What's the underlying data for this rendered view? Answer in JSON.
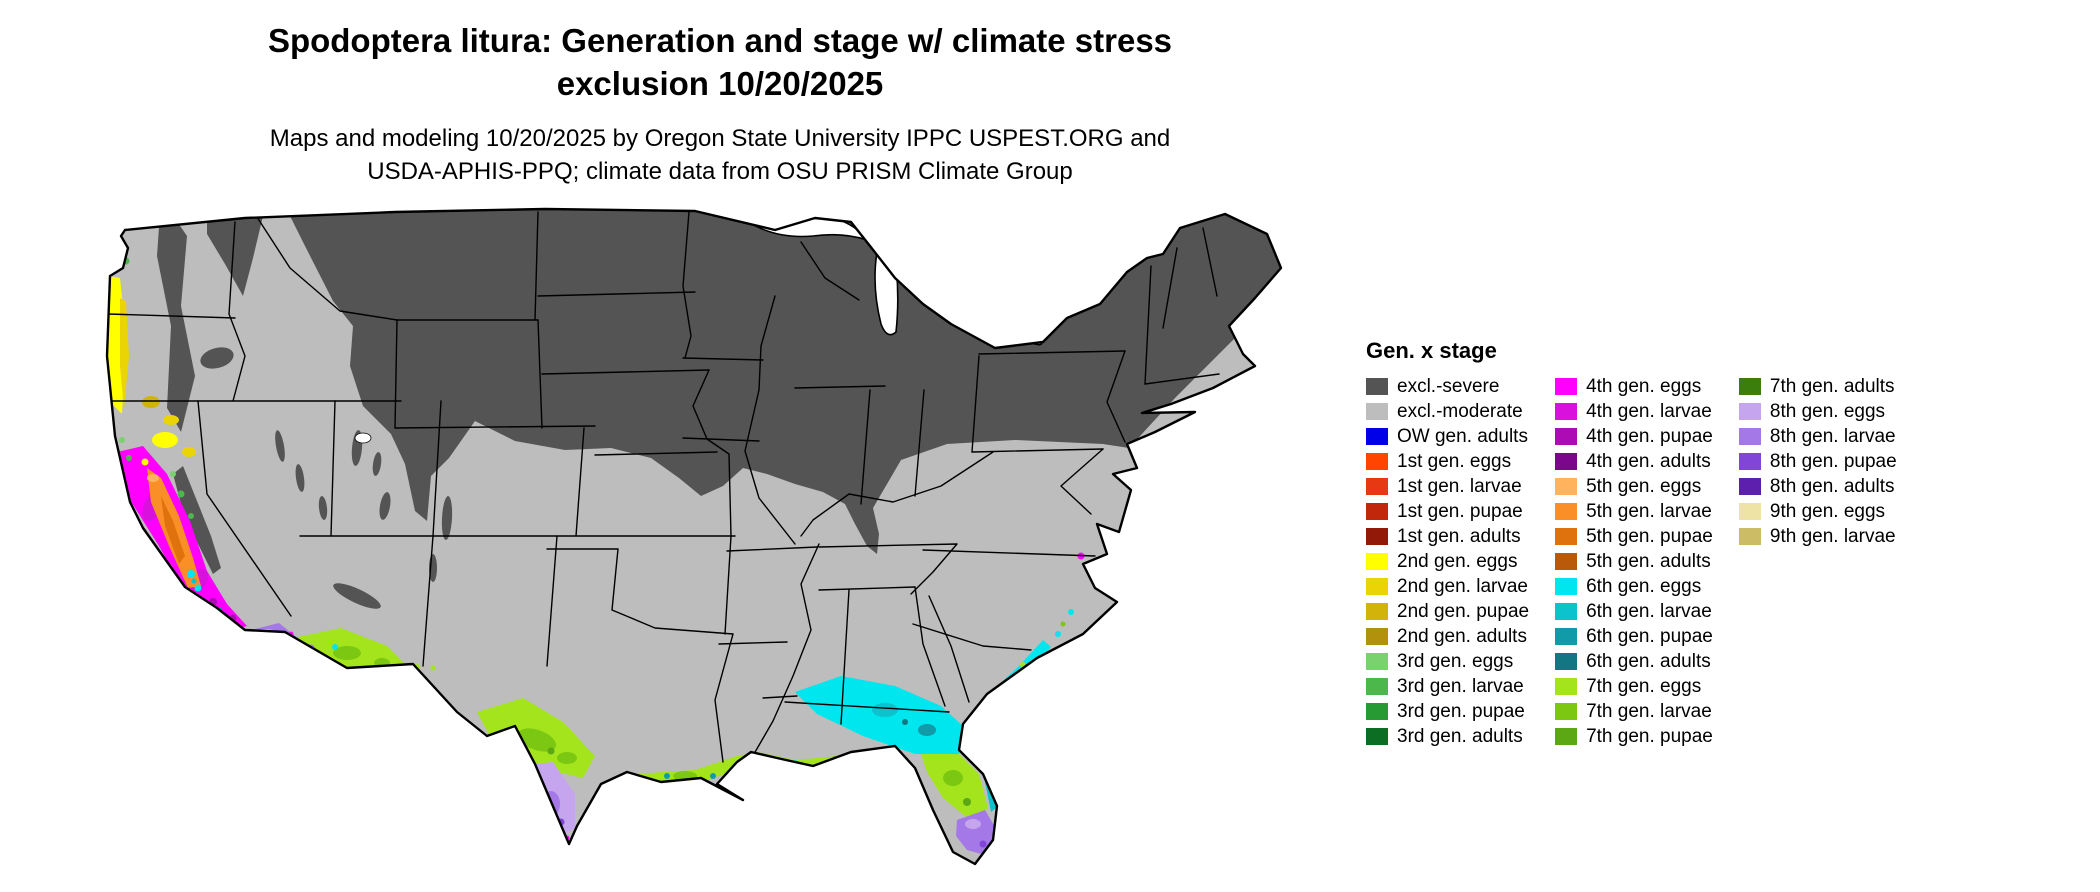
{
  "title": {
    "line1": "Spodoptera litura: Generation and stage w/ climate stress",
    "line2": "exclusion 10/20/2025"
  },
  "subtitle": {
    "line1": "Maps and modeling 10/20/2025 by Oregon State University IPPC USPEST.ORG and",
    "line2": "USDA-APHIS-PPQ; climate data from OSU PRISM Climate Group"
  },
  "legend": {
    "header": "Gen. x stage",
    "columns": [
      {
        "entries": [
          {
            "label": "excl.-severe",
            "color": "excl_severe"
          },
          {
            "label": "excl.-moderate",
            "color": "excl_moderate"
          },
          {
            "label": "OW gen. adults",
            "color": "ow_adults"
          },
          {
            "label": "1st gen. eggs",
            "color": "gen1_eggs"
          },
          {
            "label": "1st gen. larvae",
            "color": "gen1_larvae"
          },
          {
            "label": "1st gen. pupae",
            "color": "gen1_pupae"
          },
          {
            "label": "1st gen. adults",
            "color": "gen1_adults"
          },
          {
            "label": "2nd gen. eggs",
            "color": "gen2_eggs"
          },
          {
            "label": "2nd gen. larvae",
            "color": "gen2_larvae"
          },
          {
            "label": "2nd gen. pupae",
            "color": "gen2_pupae"
          },
          {
            "label": "2nd gen. adults",
            "color": "gen2_adults"
          },
          {
            "label": "3rd gen. eggs",
            "color": "gen3_eggs"
          },
          {
            "label": "3rd gen. larvae",
            "color": "gen3_larvae"
          },
          {
            "label": "3rd gen. pupae",
            "color": "gen3_pupae"
          },
          {
            "label": "3rd gen. adults",
            "color": "gen3_adults"
          }
        ]
      },
      {
        "entries": [
          {
            "label": "4th gen. eggs",
            "color": "gen4_eggs"
          },
          {
            "label": "4th gen. larvae",
            "color": "gen4_larvae"
          },
          {
            "label": "4th gen. pupae",
            "color": "gen4_pupae"
          },
          {
            "label": "4th gen. adults",
            "color": "gen4_adults"
          },
          {
            "label": "5th gen. eggs",
            "color": "gen5_eggs"
          },
          {
            "label": "5th gen. larvae",
            "color": "gen5_larvae"
          },
          {
            "label": "5th gen. pupae",
            "color": "gen5_pupae"
          },
          {
            "label": "5th gen. adults",
            "color": "gen5_adults"
          },
          {
            "label": "6th gen. eggs",
            "color": "gen6_eggs"
          },
          {
            "label": "6th gen. larvae",
            "color": "gen6_larvae"
          },
          {
            "label": "6th gen. pupae",
            "color": "gen6_pupae"
          },
          {
            "label": "6th gen. adults",
            "color": "gen6_adults"
          },
          {
            "label": "7th gen. eggs",
            "color": "gen7_eggs"
          },
          {
            "label": "7th gen. larvae",
            "color": "gen7_larvae"
          },
          {
            "label": "7th gen. pupae",
            "color": "gen7_pupae"
          }
        ]
      },
      {
        "entries": [
          {
            "label": "7th gen. adults",
            "color": "gen7_adults"
          },
          {
            "label": "8th gen. eggs",
            "color": "gen8_eggs"
          },
          {
            "label": "8th gen. larvae",
            "color": "gen8_larvae"
          },
          {
            "label": "8th gen. pupae",
            "color": "gen8_pupae"
          },
          {
            "label": "8th gen. adults",
            "color": "gen8_adults"
          },
          {
            "label": "9th gen. eggs",
            "color": "gen9_eggs"
          },
          {
            "label": "9th gen. larvae",
            "color": "gen9_larvae"
          }
        ]
      }
    ]
  },
  "palette": {
    "excl_severe": "#545454",
    "excl_moderate": "#bdbdbd",
    "ow_adults": "#0000e8",
    "gen1_eggs": "#ff4500",
    "gen1_larvae": "#e63812",
    "gen1_pupae": "#c1280b",
    "gen1_adults": "#921807",
    "gen2_eggs": "#ffff00",
    "gen2_larvae": "#ebd406",
    "gen2_pupae": "#d2b309",
    "gen2_adults": "#b2920c",
    "gen3_eggs": "#79d26d",
    "gen3_larvae": "#4cb84c",
    "gen3_pupae": "#279a33",
    "gen3_adults": "#0b6e23",
    "gen4_eggs": "#ff00ff",
    "gen4_larvae": "#d911dc",
    "gen4_pupae": "#ad0cb5",
    "gen4_adults": "#7c078d",
    "gen5_eggs": "#ffb35c",
    "gen5_larvae": "#fb8f27",
    "gen5_pupae": "#e0720e",
    "gen5_adults": "#b85a0a",
    "gen6_eggs": "#00e6ee",
    "gen6_larvae": "#0cc3cd",
    "gen6_pupae": "#119ba8",
    "gen6_adults": "#127683",
    "gen7_eggs": "#a4e41c",
    "gen7_larvae": "#7cc711",
    "gen7_pupae": "#5ba714",
    "gen7_adults": "#3c7e0e",
    "gen8_eggs": "#c5a6ee",
    "gen8_larvae": "#a478e6",
    "gen8_pupae": "#8145d8",
    "gen8_adults": "#5c1fae",
    "gen9_eggs": "#eee3a4",
    "gen9_larvae": "#cdbc66"
  }
}
